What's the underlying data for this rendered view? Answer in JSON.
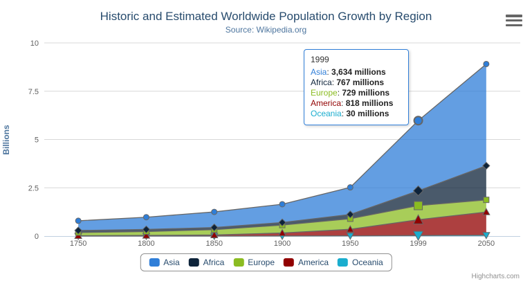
{
  "chart_data": {
    "type": "area",
    "stacking": "normal",
    "title": "Historic and Estimated Worldwide Population Growth by Region",
    "subtitle": "Source: Wikipedia.org",
    "categories": [
      "1750",
      "1800",
      "1850",
      "1900",
      "1950",
      "1999",
      "2050"
    ],
    "values_unit": "millions",
    "series": [
      {
        "name": "Asia",
        "color": "#2f7ed8",
        "marker": "circle",
        "values": [
          502,
          635,
          809,
          947,
          1402,
          3634,
          5268
        ]
      },
      {
        "name": "Africa",
        "color": "#0d233a",
        "marker": "diamond",
        "values": [
          106,
          107,
          111,
          133,
          221,
          767,
          1766
        ]
      },
      {
        "name": "Europe",
        "color": "#8bbc21",
        "marker": "square",
        "values": [
          163,
          203,
          276,
          408,
          547,
          729,
          628
        ]
      },
      {
        "name": "America",
        "color": "#910000",
        "marker": "triangle",
        "values": [
          18,
          31,
          54,
          156,
          339,
          818,
          1201
        ]
      },
      {
        "name": "Oceania",
        "color": "#1aadce",
        "marker": "triangle-down",
        "values": [
          2,
          2,
          2,
          6,
          13,
          30,
          46
        ]
      }
    ],
    "ylabel": "Billions",
    "xlabel": "",
    "ylim": [
      0,
      10
    ],
    "y_ticks": [
      "0",
      "2.5",
      "5",
      "7.5",
      "10"
    ],
    "grid": true,
    "legend_position": "bottom",
    "hovered_category": "1999",
    "hovered_index": 5
  },
  "tooltip": {
    "header": "1999",
    "rows": [
      {
        "name": "Asia",
        "value": "3,634 millions",
        "color": "#2f7ed8"
      },
      {
        "name": "Africa",
        "value": "767 millions",
        "color": "#0d233a"
      },
      {
        "name": "Europe",
        "value": "729 millions",
        "color": "#8bbc21"
      },
      {
        "name": "America",
        "value": "818 millions",
        "color": "#910000"
      },
      {
        "name": "Oceania",
        "value": "30 millions",
        "color": "#1aadce"
      }
    ]
  },
  "credits": {
    "label": "Highcharts.com"
  },
  "style": {
    "title_color": "#274b6d",
    "subtitle_color": "#4d759e",
    "axis_label_color": "#606060",
    "grid_color": "#d8d8d8",
    "axis_line_color": "#c0d0e0",
    "series_line_color": "#666666",
    "legend_text_color": "#274b6d",
    "fill_opacity": 0.75
  }
}
